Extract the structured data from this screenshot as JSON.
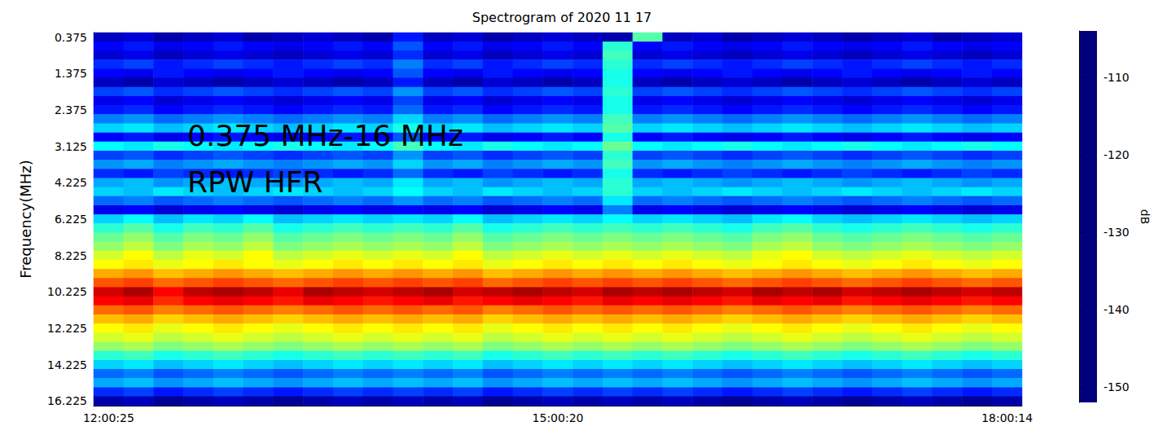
{
  "chart_data": {
    "type": "heatmap",
    "title": "Spectrogram of 2020 11 17",
    "y_label": "Frequency(MHz)",
    "annotations": [
      "0.375 MHz-16 MHz",
      "RPW HFR"
    ],
    "x": [
      "12:00:25",
      null,
      null,
      null,
      null,
      null,
      null,
      null,
      null,
      null,
      null,
      null,
      null,
      null,
      null,
      "15:00:20",
      null,
      null,
      null,
      null,
      null,
      null,
      null,
      null,
      null,
      null,
      null,
      null,
      null,
      null,
      "18:00:14"
    ],
    "y": [
      "0.375",
      null,
      null,
      null,
      "1.375",
      null,
      null,
      null,
      "2.375",
      null,
      null,
      null,
      "3.125",
      null,
      null,
      null,
      "4.225",
      null,
      null,
      null,
      "6.225",
      null,
      null,
      null,
      "8.225",
      null,
      null,
      null,
      "10.225",
      null,
      null,
      null,
      "12.225",
      null,
      null,
      null,
      "14.225",
      null,
      null,
      null,
      "16.225"
    ],
    "cells": [
      [
        -149,
        -148,
        -150,
        -149,
        -148,
        -150,
        -149,
        -148,
        -149,
        -150,
        -145,
        -149,
        -148,
        -150,
        -149,
        -148,
        -149,
        -150,
        -130,
        -149,
        -148,
        -150,
        -149,
        -148,
        -149,
        -150,
        -149,
        -148,
        -150,
        -149,
        -148
      ],
      [
        -146,
        -145,
        -147,
        -146,
        -145,
        -146,
        -147,
        -146,
        -145,
        -146,
        -142,
        -146,
        -145,
        -147,
        -146,
        -145,
        -146,
        -132,
        -146,
        -145,
        -146,
        -147,
        -146,
        -145,
        -146,
        -147,
        -146,
        -145,
        -146,
        -147,
        -146
      ],
      [
        -148,
        -147,
        -149,
        -148,
        -147,
        -148,
        -149,
        -148,
        -147,
        -148,
        -144,
        -148,
        -147,
        -149,
        -148,
        -147,
        -148,
        -131,
        -148,
        -147,
        -148,
        -149,
        -148,
        -147,
        -148,
        -149,
        -148,
        -147,
        -148,
        -149,
        -148
      ],
      [
        -144,
        -143,
        -145,
        -144,
        -143,
        -144,
        -145,
        -144,
        -143,
        -144,
        -140,
        -144,
        -143,
        -145,
        -144,
        -143,
        -144,
        -132,
        -144,
        -143,
        -144,
        -145,
        -144,
        -143,
        -144,
        -145,
        -144,
        -143,
        -144,
        -145,
        -144
      ],
      [
        -146,
        -147,
        -145,
        -146,
        -147,
        -146,
        -145,
        -146,
        -147,
        -146,
        -142,
        -146,
        -147,
        -145,
        -146,
        -147,
        -146,
        -133,
        -146,
        -147,
        -146,
        -145,
        -146,
        -147,
        -146,
        -145,
        -146,
        -147,
        -146,
        -145,
        -146
      ],
      [
        -149,
        -150,
        -148,
        -149,
        -150,
        -149,
        -148,
        -149,
        -150,
        -149,
        -145,
        -149,
        -150,
        -148,
        -149,
        -150,
        -149,
        -133,
        -149,
        -150,
        -149,
        -148,
        -149,
        -150,
        -149,
        -148,
        -149,
        -150,
        -149,
        -148,
        -149
      ],
      [
        -143,
        -142,
        -144,
        -143,
        -142,
        -143,
        -144,
        -143,
        -142,
        -143,
        -139,
        -143,
        -142,
        -144,
        -143,
        -142,
        -143,
        -132,
        -143,
        -142,
        -143,
        -144,
        -143,
        -142,
        -143,
        -144,
        -143,
        -142,
        -143,
        -144,
        -143
      ],
      [
        -147,
        -146,
        -148,
        -147,
        -146,
        -147,
        -148,
        -147,
        -146,
        -147,
        -143,
        -147,
        -146,
        -148,
        -147,
        -146,
        -147,
        -133,
        -147,
        -146,
        -147,
        -148,
        -147,
        -146,
        -147,
        -148,
        -147,
        -146,
        -147,
        -148,
        -147
      ],
      [
        -145,
        -144,
        -146,
        -145,
        -144,
        -145,
        -146,
        -145,
        -144,
        -145,
        -141,
        -145,
        -144,
        -146,
        -145,
        -144,
        -145,
        -133,
        -145,
        -144,
        -145,
        -146,
        -145,
        -144,
        -145,
        -146,
        -145,
        -144,
        -145,
        -146,
        -145
      ],
      [
        -140,
        -139,
        -141,
        -140,
        -139,
        -140,
        -141,
        -140,
        -139,
        -140,
        -136,
        -140,
        -139,
        -141,
        -140,
        -139,
        -140,
        -131,
        -140,
        -139,
        -140,
        -141,
        -140,
        -139,
        -140,
        -141,
        -140,
        -139,
        -140,
        -141,
        -140
      ],
      [
        -136,
        -135,
        -137,
        -136,
        -135,
        -136,
        -137,
        -136,
        -135,
        -136,
        -133,
        -136,
        -135,
        -137,
        -136,
        -135,
        -136,
        -130,
        -136,
        -135,
        -136,
        -137,
        -136,
        -135,
        -136,
        -137,
        -136,
        -135,
        -136,
        -137,
        -136
      ],
      [
        -146,
        -145,
        -147,
        -146,
        -145,
        -146,
        -147,
        -146,
        -145,
        -146,
        -142,
        -146,
        -145,
        -147,
        -146,
        -145,
        -146,
        -133,
        -146,
        -145,
        -146,
        -147,
        -146,
        -145,
        -146,
        -147,
        -146,
        -145,
        -146,
        -147,
        -146
      ],
      [
        -134,
        -135,
        -133,
        -134,
        -135,
        -134,
        -133,
        -134,
        -135,
        -134,
        -131,
        -134,
        -135,
        -133,
        -134,
        -135,
        -134,
        -129,
        -134,
        -135,
        -134,
        -133,
        -134,
        -135,
        -134,
        -133,
        -134,
        -135,
        -134,
        -133,
        -134
      ],
      [
        -143,
        -142,
        -144,
        -143,
        -142,
        -143,
        -144,
        -143,
        -142,
        -143,
        -139,
        -143,
        -142,
        -144,
        -143,
        -142,
        -143,
        -132,
        -143,
        -142,
        -143,
        -144,
        -143,
        -142,
        -143,
        -144,
        -143,
        -142,
        -143,
        -144,
        -143
      ],
      [
        -139,
        -138,
        -140,
        -139,
        -138,
        -139,
        -140,
        -139,
        -138,
        -139,
        -136,
        -139,
        -138,
        -140,
        -139,
        -138,
        -139,
        -131,
        -139,
        -138,
        -139,
        -140,
        -139,
        -138,
        -139,
        -140,
        -139,
        -138,
        -139,
        -140,
        -139
      ],
      [
        -144,
        -145,
        -143,
        -144,
        -145,
        -144,
        -143,
        -144,
        -145,
        -144,
        -141,
        -144,
        -145,
        -143,
        -144,
        -145,
        -144,
        -133,
        -144,
        -145,
        -144,
        -143,
        -144,
        -145,
        -144,
        -143,
        -144,
        -145,
        -144,
        -143,
        -144
      ],
      [
        -138,
        -137,
        -139,
        -138,
        -137,
        -138,
        -139,
        -138,
        -137,
        -138,
        -135,
        -138,
        -137,
        -139,
        -138,
        -137,
        -138,
        -132,
        -138,
        -137,
        -138,
        -139,
        -138,
        -137,
        -138,
        -139,
        -138,
        -137,
        -138,
        -139,
        -138
      ],
      [
        -136,
        -137,
        -135,
        -136,
        -137,
        -136,
        -135,
        -136,
        -137,
        -136,
        -134,
        -136,
        -137,
        -135,
        -136,
        -137,
        -136,
        -132,
        -136,
        -137,
        -136,
        -135,
        -136,
        -137,
        -136,
        -135,
        -136,
        -137,
        -136,
        -135,
        -136
      ],
      [
        -141,
        -140,
        -142,
        -141,
        -140,
        -141,
        -142,
        -141,
        -140,
        -141,
        -139,
        -141,
        -140,
        -142,
        -141,
        -140,
        -141,
        -135,
        -141,
        -140,
        -141,
        -142,
        -141,
        -140,
        -141,
        -142,
        -141,
        -140,
        -141,
        -142,
        -141
      ],
      [
        -147,
        -146,
        -148,
        -147,
        -146,
        -147,
        -148,
        -147,
        -146,
        -147,
        -146,
        -147,
        -146,
        -148,
        -147,
        -146,
        -147,
        -140,
        -147,
        -146,
        -147,
        -148,
        -147,
        -146,
        -147,
        -148,
        -147,
        -146,
        -147,
        -148,
        -147
      ],
      [
        -136,
        -134,
        -137,
        -135,
        -136,
        -134,
        -137,
        -136,
        -135,
        -136,
        -135,
        -136,
        -134,
        -137,
        -136,
        -135,
        -136,
        -134,
        -136,
        -135,
        -136,
        -137,
        -135,
        -134,
        -136,
        -137,
        -136,
        -135,
        -136,
        -137,
        -136
      ],
      [
        -132,
        -130,
        -133,
        -131,
        -132,
        -130,
        -133,
        -132,
        -131,
        -132,
        -131,
        -132,
        -130,
        -133,
        -132,
        -131,
        -132,
        -131,
        -132,
        -131,
        -132,
        -133,
        -131,
        -130,
        -132,
        -133,
        -132,
        -131,
        -132,
        -133,
        -132
      ],
      [
        -129,
        -127,
        -130,
        -128,
        -129,
        -127,
        -130,
        -129,
        -128,
        -129,
        -128,
        -129,
        -127,
        -130,
        -129,
        -128,
        -129,
        -128,
        -129,
        -128,
        -129,
        -130,
        -128,
        -127,
        -129,
        -130,
        -129,
        -128,
        -129,
        -130,
        -129
      ],
      [
        -127,
        -125,
        -128,
        -126,
        -127,
        -125,
        -128,
        -127,
        -126,
        -127,
        -126,
        -127,
        -125,
        -128,
        -127,
        -126,
        -127,
        -126,
        -127,
        -126,
        -127,
        -128,
        -126,
        -125,
        -127,
        -128,
        -127,
        -126,
        -127,
        -128,
        -127
      ],
      [
        -124,
        -122,
        -125,
        -123,
        -124,
        -122,
        -125,
        -124,
        -123,
        -124,
        -123,
        -124,
        -122,
        -125,
        -124,
        -123,
        -124,
        -123,
        -124,
        -123,
        -124,
        -125,
        -123,
        -122,
        -124,
        -125,
        -124,
        -123,
        -124,
        -125,
        -124
      ],
      [
        -122,
        -121,
        -123,
        -122,
        -121,
        -122,
        -123,
        -122,
        -121,
        -122,
        -121,
        -122,
        -121,
        -123,
        -122,
        -121,
        -122,
        -121,
        -122,
        -121,
        -122,
        -123,
        -122,
        -121,
        -122,
        -123,
        -122,
        -121,
        -122,
        -123,
        -122
      ],
      [
        -118,
        -117,
        -119,
        -118,
        -117,
        -118,
        -119,
        -118,
        -117,
        -118,
        -117,
        -118,
        -117,
        -119,
        -118,
        -117,
        -118,
        -117,
        -118,
        -117,
        -118,
        -119,
        -118,
        -117,
        -118,
        -119,
        -118,
        -117,
        -118,
        -119,
        -118
      ],
      [
        -114,
        -113,
        -115,
        -114,
        -113,
        -114,
        -115,
        -114,
        -113,
        -114,
        -113,
        -114,
        -113,
        -115,
        -114,
        -113,
        -114,
        -113,
        -114,
        -113,
        -114,
        -115,
        -114,
        -113,
        -114,
        -115,
        -114,
        -113,
        -114,
        -115,
        -114
      ],
      [
        -108,
        -106,
        -110,
        -107,
        -106,
        -107,
        -109,
        -106,
        -107,
        -108,
        -107,
        -106,
        -108,
        -107,
        -106,
        -107,
        -108,
        -106,
        -107,
        -106,
        -107,
        -108,
        -106,
        -107,
        -106,
        -108,
        -107,
        -106,
        -107,
        -108,
        -107
      ],
      [
        -110,
        -109,
        -112,
        -110,
        -109,
        -110,
        -111,
        -109,
        -110,
        -111,
        -110,
        -109,
        -111,
        -110,
        -109,
        -110,
        -111,
        -109,
        -110,
        -109,
        -110,
        -111,
        -109,
        -110,
        -109,
        -111,
        -110,
        -109,
        -110,
        -111,
        -110
      ],
      [
        -115,
        -114,
        -116,
        -115,
        -114,
        -115,
        -116,
        -115,
        -114,
        -115,
        -114,
        -115,
        -114,
        -116,
        -115,
        -114,
        -115,
        -114,
        -115,
        -114,
        -115,
        -116,
        -115,
        -114,
        -115,
        -116,
        -115,
        -114,
        -115,
        -116,
        -115
      ],
      [
        -119,
        -118,
        -120,
        -119,
        -118,
        -119,
        -120,
        -119,
        -118,
        -119,
        -118,
        -119,
        -118,
        -120,
        -119,
        -118,
        -119,
        -118,
        -119,
        -118,
        -119,
        -120,
        -119,
        -118,
        -119,
        -120,
        -119,
        -118,
        -119,
        -120,
        -119
      ],
      [
        -122,
        -121,
        -123,
        -122,
        -121,
        -122,
        -123,
        -122,
        -121,
        -122,
        -121,
        -122,
        -121,
        -123,
        -122,
        -121,
        -122,
        -121,
        -122,
        -121,
        -122,
        -123,
        -122,
        -121,
        -122,
        -123,
        -122,
        -121,
        -122,
        -123,
        -122
      ],
      [
        -124,
        -123,
        -125,
        -124,
        -123,
        -124,
        -125,
        -124,
        -123,
        -124,
        -123,
        -124,
        -123,
        -125,
        -124,
        -123,
        -124,
        -123,
        -124,
        -123,
        -124,
        -125,
        -124,
        -123,
        -124,
        -125,
        -124,
        -123,
        -124,
        -125,
        -124
      ],
      [
        -127,
        -126,
        -128,
        -127,
        -126,
        -127,
        -128,
        -127,
        -126,
        -127,
        -126,
        -127,
        -126,
        -128,
        -127,
        -126,
        -127,
        -126,
        -127,
        -126,
        -127,
        -128,
        -127,
        -126,
        -127,
        -128,
        -127,
        -126,
        -127,
        -128,
        -127
      ],
      [
        -132,
        -131,
        -133,
        -132,
        -131,
        -132,
        -133,
        -132,
        -131,
        -132,
        -131,
        -132,
        -131,
        -133,
        -132,
        -131,
        -132,
        -131,
        -132,
        -131,
        -132,
        -133,
        -132,
        -131,
        -132,
        -133,
        -132,
        -131,
        -132,
        -133,
        -132
      ],
      [
        -136,
        -135,
        -137,
        -136,
        -135,
        -136,
        -137,
        -136,
        -135,
        -136,
        -135,
        -136,
        -135,
        -137,
        -136,
        -135,
        -136,
        -135,
        -136,
        -135,
        -136,
        -137,
        -136,
        -135,
        -136,
        -137,
        -136,
        -135,
        -136,
        -137,
        -136
      ],
      [
        -141,
        -140,
        -142,
        -141,
        -140,
        -141,
        -142,
        -141,
        -140,
        -141,
        -140,
        -141,
        -140,
        -142,
        -141,
        -140,
        -141,
        -140,
        -141,
        -140,
        -141,
        -142,
        -141,
        -140,
        -141,
        -142,
        -141,
        -140,
        -141,
        -142,
        -141
      ],
      [
        -138,
        -137,
        -139,
        -138,
        -137,
        -138,
        -139,
        -138,
        -137,
        -138,
        -137,
        -138,
        -137,
        -139,
        -138,
        -137,
        -138,
        -137,
        -138,
        -137,
        -138,
        -139,
        -138,
        -137,
        -138,
        -139,
        -138,
        -137,
        -138,
        -139,
        -138
      ],
      [
        -144,
        -143,
        -145,
        -144,
        -143,
        -144,
        -145,
        -144,
        -143,
        -144,
        -143,
        -144,
        -143,
        -145,
        -144,
        -143,
        -144,
        -143,
        -144,
        -143,
        -144,
        -145,
        -144,
        -143,
        -144,
        -145,
        -144,
        -143,
        -144,
        -145,
        -144
      ],
      [
        -150,
        -149,
        -151,
        -150,
        -149,
        -150,
        -151,
        -150,
        -149,
        -150,
        -149,
        -150,
        -149,
        -151,
        -150,
        -149,
        -150,
        -149,
        -150,
        -149,
        -150,
        -151,
        -150,
        -149,
        -150,
        -151,
        -150,
        -149,
        -150,
        -151,
        -150
      ]
    ],
    "colorbar": {
      "range": [
        -152,
        -104
      ],
      "ticks": [
        -150,
        -140,
        -130,
        -120,
        -110
      ],
      "label": "dB"
    }
  }
}
